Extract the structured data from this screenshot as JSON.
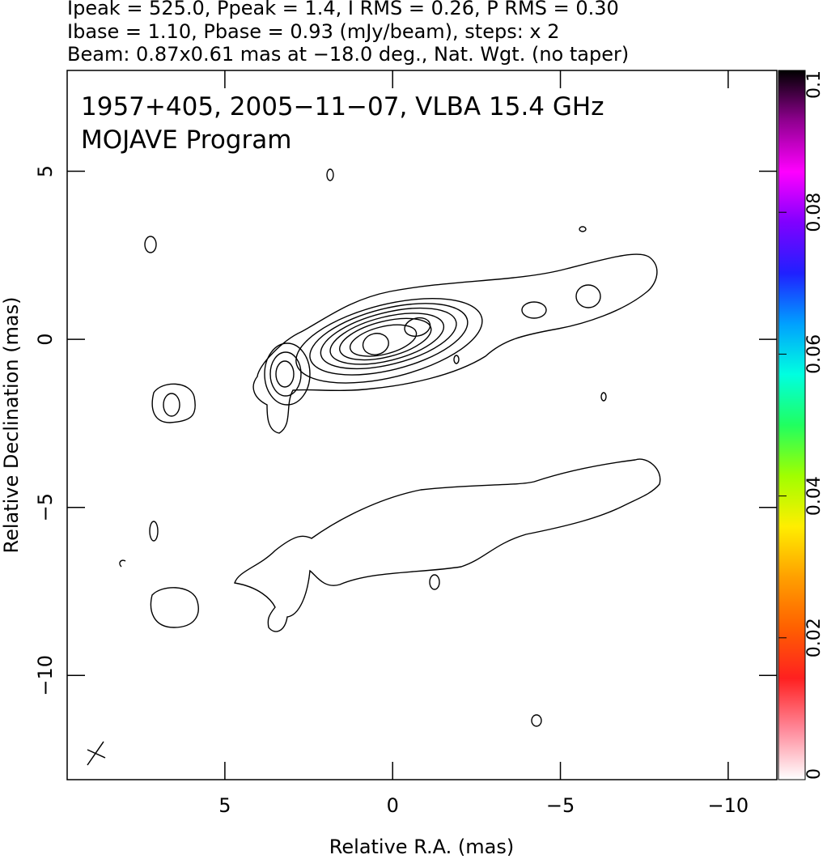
{
  "chart_data": {
    "type": "contour",
    "header": [
      "Ipeak = 525.0, Ppeak = 1.4, I RMS = 0.26, P RMS = 0.30",
      "Ibase = 1.10, Pbase = 0.93 (mJy/beam), steps: x 2",
      "Beam: 0.87x0.61 mas at −18.0 deg., Nat. Wgt. (no taper)"
    ],
    "title": "1957+405, 2005−11−07, VLBA 15.4 GHz",
    "subtitle": "MOJAVE Program",
    "x_label": "Relative R.A. (mas)",
    "y_label": "Relative Declination (mas)",
    "xlim": [
      9.7,
      -11.45
    ],
    "ylim": [
      -13.1,
      8.0
    ],
    "xticks": [
      5,
      0,
      {
        "value": -5,
        "label": "−5"
      },
      {
        "value": -10,
        "label": "−10"
      }
    ],
    "yticks": [
      5,
      0,
      {
        "value": -5,
        "label": "−5"
      },
      {
        "value": -10,
        "label": "−10"
      }
    ],
    "colorbar": {
      "lim": [
        0,
        0.1
      ],
      "ticks": [
        0,
        0.02,
        0.04,
        0.06,
        0.08,
        0.1
      ],
      "colors": [
        "#ffffff",
        "#ff8899",
        "#ff2020",
        "#ff6000",
        "#ffa000",
        "#ffee00",
        "#a0ff00",
        "#20ff60",
        "#00ffe0",
        "#00a0ff",
        "#2020ff",
        "#8000ff",
        "#ff00ff",
        "#900090",
        "#000000"
      ]
    }
  }
}
